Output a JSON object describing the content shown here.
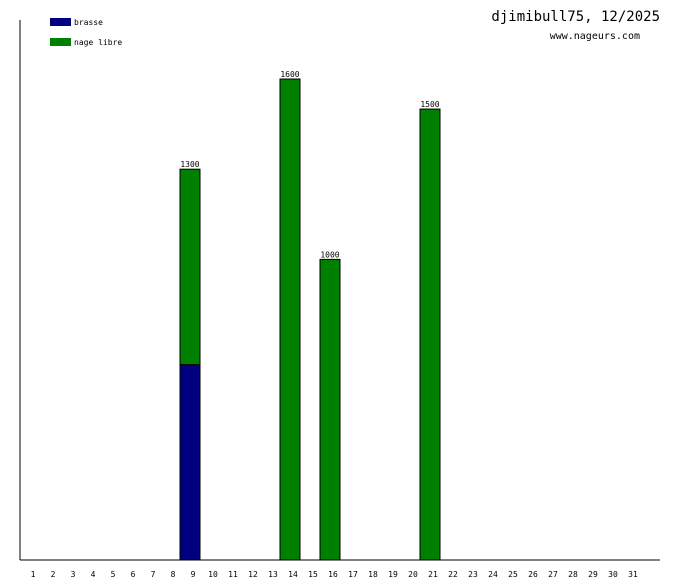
{
  "chart_data": {
    "type": "bar",
    "stacked": true,
    "title": "djimibull75, 12/2025",
    "subtitle": "www.nageurs.com",
    "categories": [
      "1",
      "2",
      "3",
      "4",
      "5",
      "6",
      "7",
      "8",
      "9",
      "10",
      "11",
      "12",
      "13",
      "14",
      "15",
      "16",
      "17",
      "18",
      "19",
      "20",
      "21",
      "22",
      "23",
      "24",
      "25",
      "26",
      "27",
      "28",
      "29",
      "30",
      "31"
    ],
    "series": [
      {
        "name": "brasse",
        "color": "#000080",
        "values": [
          0,
          0,
          0,
          0,
          0,
          0,
          0,
          0,
          650,
          0,
          0,
          0,
          0,
          0,
          0,
          0,
          0,
          0,
          0,
          0,
          0,
          0,
          0,
          0,
          0,
          0,
          0,
          0,
          0,
          0,
          0
        ]
      },
      {
        "name": "nage libre",
        "color": "#008000",
        "values": [
          0,
          0,
          0,
          0,
          0,
          0,
          0,
          0,
          650,
          0,
          0,
          0,
          0,
          1600,
          0,
          1000,
          0,
          0,
          0,
          0,
          1500,
          0,
          0,
          0,
          0,
          0,
          0,
          0,
          0,
          0,
          0
        ]
      }
    ],
    "totals": [
      0,
      0,
      0,
      0,
      0,
      0,
      0,
      0,
      1300,
      0,
      0,
      0,
      0,
      1600,
      0,
      1000,
      0,
      0,
      0,
      0,
      1500,
      0,
      0,
      0,
      0,
      0,
      0,
      0,
      0,
      0,
      0
    ],
    "ylim": [
      0,
      1800
    ],
    "legend": "top-left",
    "grid": false
  }
}
